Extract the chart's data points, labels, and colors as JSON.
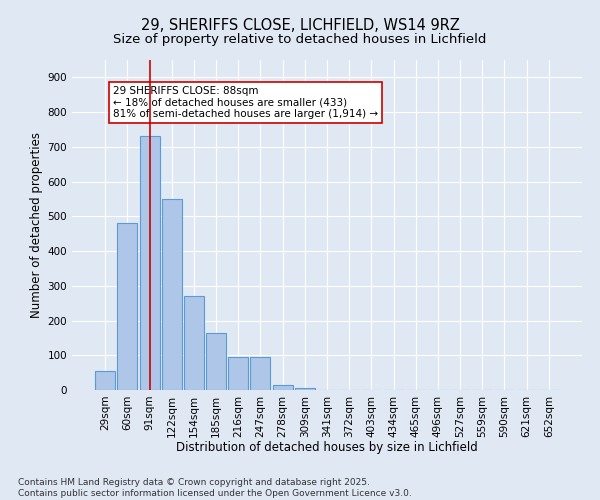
{
  "title_line1": "29, SHERIFFS CLOSE, LICHFIELD, WS14 9RZ",
  "title_line2": "Size of property relative to detached houses in Lichfield",
  "xlabel": "Distribution of detached houses by size in Lichfield",
  "ylabel": "Number of detached properties",
  "categories": [
    "29sqm",
    "60sqm",
    "91sqm",
    "122sqm",
    "154sqm",
    "185sqm",
    "216sqm",
    "247sqm",
    "278sqm",
    "309sqm",
    "341sqm",
    "372sqm",
    "403sqm",
    "434sqm",
    "465sqm",
    "496sqm",
    "527sqm",
    "559sqm",
    "590sqm",
    "621sqm",
    "652sqm"
  ],
  "values": [
    55,
    480,
    730,
    550,
    270,
    165,
    95,
    95,
    15,
    5,
    0,
    0,
    0,
    0,
    0,
    0,
    0,
    0,
    0,
    0,
    0
  ],
  "bar_color": "#aec6e8",
  "bar_edge_color": "#5b9bd5",
  "vline_x_index": 2,
  "vline_color": "#cc0000",
  "annotation_text": "29 SHERIFFS CLOSE: 88sqm\n← 18% of detached houses are smaller (433)\n81% of semi-detached houses are larger (1,914) →",
  "annotation_box_color": "#ffffff",
  "annotation_box_edge": "#cc0000",
  "ylim": [
    0,
    950
  ],
  "yticks": [
    0,
    100,
    200,
    300,
    400,
    500,
    600,
    700,
    800,
    900
  ],
  "background_color": "#e0e8f4",
  "grid_color": "#ffffff",
  "footer_line1": "Contains HM Land Registry data © Crown copyright and database right 2025.",
  "footer_line2": "Contains public sector information licensed under the Open Government Licence v3.0.",
  "title_fontsize": 10.5,
  "subtitle_fontsize": 9.5,
  "axis_label_fontsize": 8.5,
  "tick_fontsize": 7.5,
  "annotation_fontsize": 7.5,
  "footer_fontsize": 6.5
}
